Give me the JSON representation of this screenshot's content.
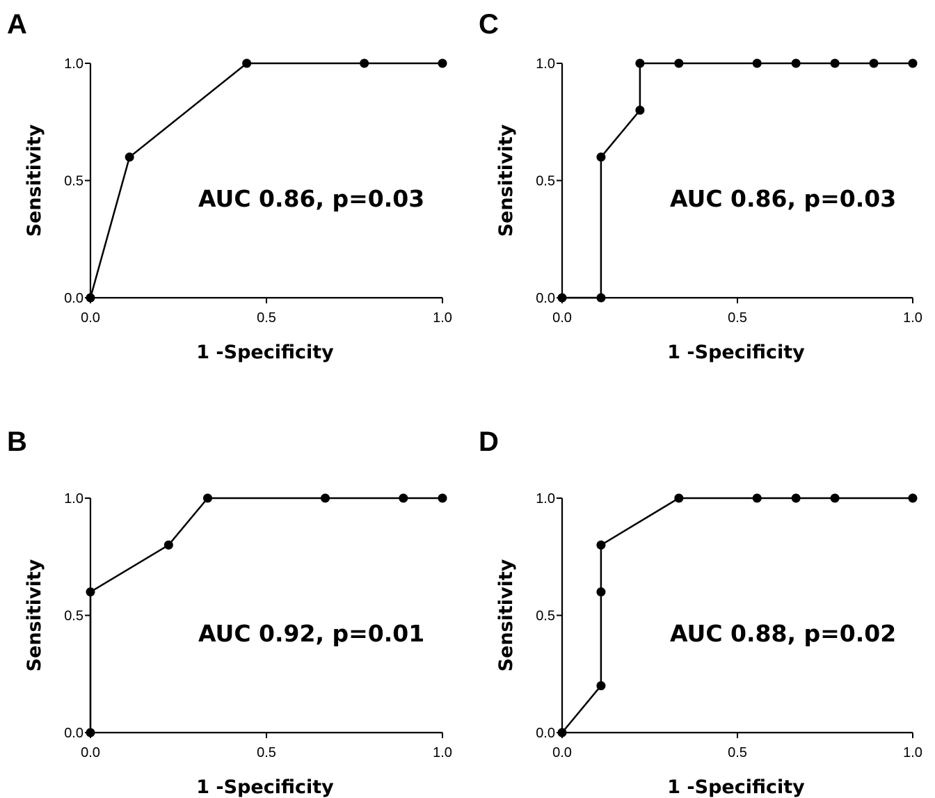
{
  "chart_data": [
    {
      "panel": "A",
      "type": "line",
      "title": "",
      "xlabel": "1 -Specificity",
      "ylabel": "Sensitivity",
      "xlim": [
        0,
        1
      ],
      "ylim": [
        0,
        1
      ],
      "xticks": [
        "0.0",
        "0.5",
        "1.0"
      ],
      "yticks": [
        "0.0",
        "0.5",
        "1.0"
      ],
      "annotation": "AUC 0.86, p=0.03",
      "grid": false,
      "x": [
        0,
        0.111,
        0.444,
        0.778,
        1.0
      ],
      "y": [
        0,
        0.6,
        1.0,
        1.0,
        1.0
      ]
    },
    {
      "panel": "B",
      "type": "line",
      "title": "",
      "xlabel": "1 -Specificity",
      "ylabel": "Sensitivity",
      "xlim": [
        0,
        1
      ],
      "ylim": [
        0,
        1
      ],
      "xticks": [
        "0.0",
        "0.5",
        "1.0"
      ],
      "yticks": [
        "0.0",
        "0.5",
        "1.0"
      ],
      "annotation": "AUC 0.92, p=0.01",
      "grid": false,
      "x": [
        0,
        0,
        0.222,
        0.333,
        0.667,
        0.889,
        1.0
      ],
      "y": [
        0,
        0.6,
        0.8,
        1.0,
        1.0,
        1.0,
        1.0
      ]
    },
    {
      "panel": "C",
      "type": "line",
      "title": "",
      "xlabel": "1 -Specificity",
      "ylabel": "Sensitivity",
      "xlim": [
        0,
        1
      ],
      "ylim": [
        0,
        1
      ],
      "xticks": [
        "0.0",
        "0.5",
        "1.0"
      ],
      "yticks": [
        "0.0",
        "0.5",
        "1.0"
      ],
      "annotation": "AUC 0.86, p=0.03",
      "grid": false,
      "x": [
        0,
        0.111,
        0.111,
        0.222,
        0.222,
        0.333,
        0.556,
        0.667,
        0.778,
        0.889,
        1.0
      ],
      "y": [
        0,
        0,
        0.6,
        0.8,
        1.0,
        1.0,
        1.0,
        1.0,
        1.0,
        1.0,
        1.0
      ]
    },
    {
      "panel": "D",
      "type": "line",
      "title": "",
      "xlabel": "1 -Specificity",
      "ylabel": "Sensitivity",
      "xlim": [
        0,
        1
      ],
      "ylim": [
        0,
        1
      ],
      "xticks": [
        "0.0",
        "0.5",
        "1.0"
      ],
      "yticks": [
        "0.0",
        "0.5",
        "1.0"
      ],
      "annotation": "AUC 0.88, p=0.02",
      "grid": false,
      "x": [
        0,
        0.111,
        0.111,
        0.111,
        0.333,
        0.556,
        0.667,
        0.778,
        1.0
      ],
      "y": [
        0,
        0.2,
        0.6,
        0.8,
        1.0,
        1.0,
        1.0,
        1.0,
        1.0
      ]
    }
  ]
}
